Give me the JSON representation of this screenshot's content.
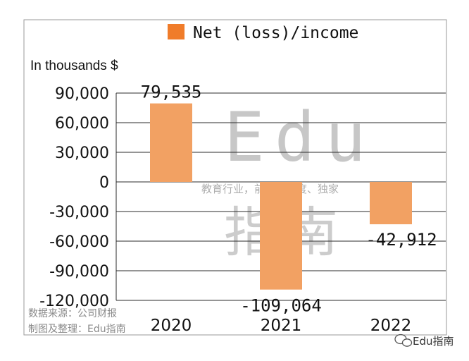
{
  "chart_data": {
    "type": "bar",
    "categories": [
      "2020",
      "2021",
      "2022"
    ],
    "series": [
      {
        "name": "Net (loss)/income",
        "values": [
          79535,
          -109064,
          -42912
        ]
      }
    ],
    "data_labels": [
      "79,535",
      "-109,064",
      "-42,912"
    ],
    "ylabel": "In thousands $",
    "yticks": [
      "90,000",
      "60,000",
      "30,000",
      "0",
      "-30,000",
      "-60,000",
      "-90,000",
      "-120,000"
    ],
    "ytick_values": [
      90000,
      60000,
      30000,
      0,
      -30000,
      -60000,
      -90000,
      -120000
    ],
    "ylim": [
      -120000,
      90000
    ],
    "grid": true,
    "legend": "top",
    "bar_color": "#f2a163",
    "legend_color": "#f07c2a"
  },
  "watermark": {
    "main": "Edu",
    "tagline": "教育行业，前沿、深度、独家",
    "name_cn": "指南"
  },
  "source": {
    "line1": "数据来源：公司财报",
    "line2": "制图及整理：Edu指南"
  },
  "brand": {
    "label": "Edu指南",
    "icon": "wechat-icon"
  }
}
